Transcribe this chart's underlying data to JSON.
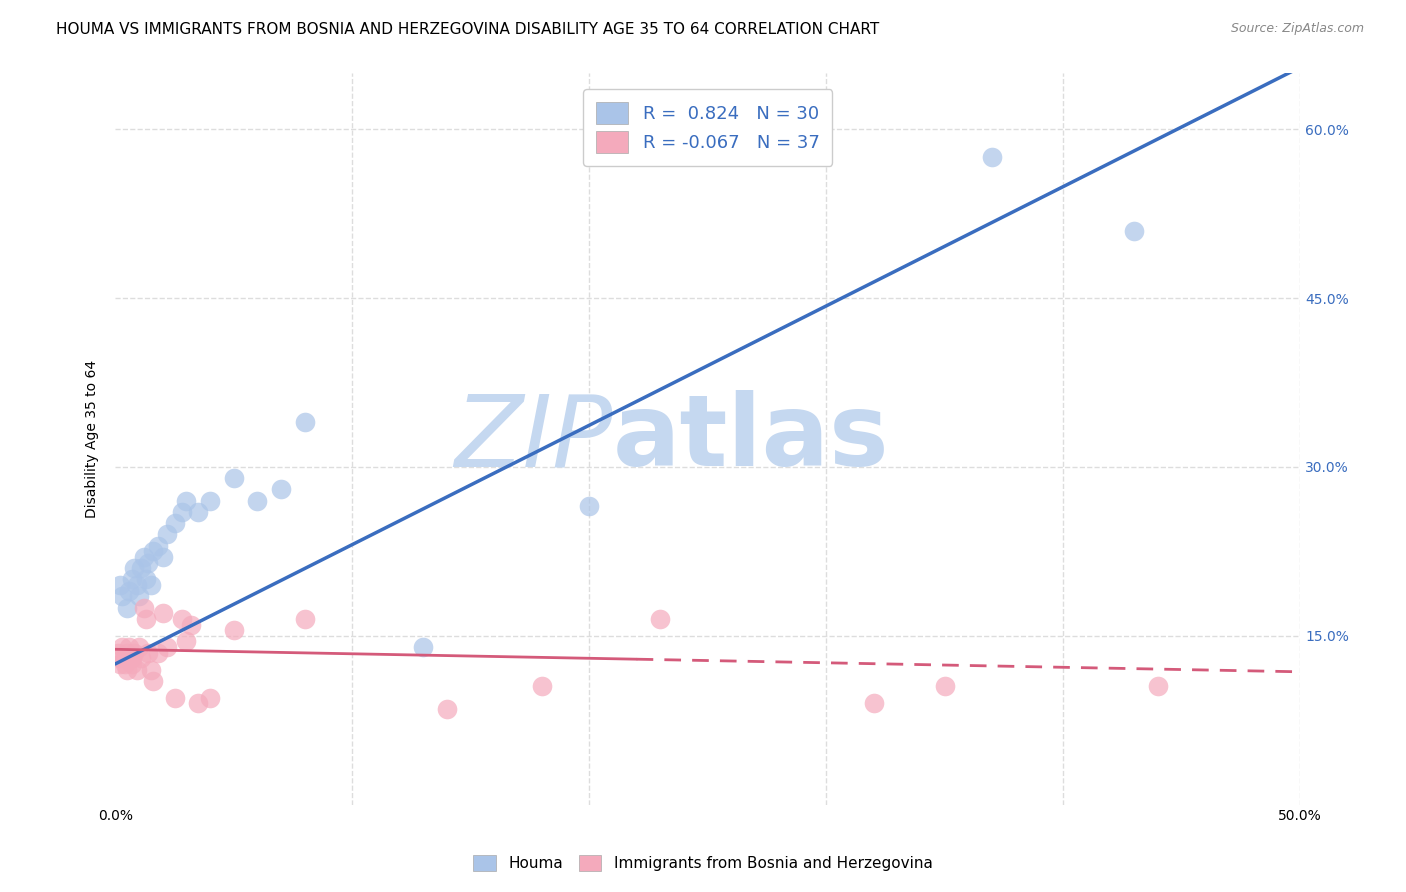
{
  "title": "HOUMA VS IMMIGRANTS FROM BOSNIA AND HERZEGOVINA DISABILITY AGE 35 TO 64 CORRELATION CHART",
  "source": "Source: ZipAtlas.com",
  "ylabel": "Disability Age 35 to 64",
  "x_min": 0.0,
  "x_max": 0.5,
  "y_min": 0.0,
  "y_max": 0.65,
  "x_ticks": [
    0.0,
    0.1,
    0.2,
    0.3,
    0.4,
    0.5
  ],
  "x_tick_labels": [
    "0.0%",
    "",
    "",
    "",
    "",
    "50.0%"
  ],
  "y_ticks": [
    0.15,
    0.3,
    0.45,
    0.6
  ],
  "y_tick_labels": [
    "15.0%",
    "30.0%",
    "45.0%",
    "60.0%"
  ],
  "houma_R": 0.824,
  "houma_N": 30,
  "bosnia_R": -0.067,
  "bosnia_N": 37,
  "houma_color": "#aac4e8",
  "houma_line_color": "#3a6dbf",
  "bosnia_color": "#f4aabc",
  "bosnia_line_color": "#d45a7a",
  "watermark_ZIP": "#c5d8f0",
  "watermark_atlas": "#c5d8f0",
  "legend_box_color": "#ffffff",
  "legend_border_color": "#cccccc",
  "grid_color": "#dddddd",
  "background_color": "#ffffff",
  "title_fontsize": 11,
  "axis_label_fontsize": 10,
  "tick_fontsize": 10,
  "houma_x": [
    0.002,
    0.003,
    0.005,
    0.006,
    0.007,
    0.008,
    0.009,
    0.01,
    0.011,
    0.012,
    0.013,
    0.014,
    0.015,
    0.016,
    0.018,
    0.02,
    0.022,
    0.025,
    0.028,
    0.03,
    0.035,
    0.04,
    0.05,
    0.06,
    0.07,
    0.08,
    0.13,
    0.2,
    0.37,
    0.43
  ],
  "houma_y": [
    0.195,
    0.185,
    0.175,
    0.19,
    0.2,
    0.21,
    0.195,
    0.185,
    0.21,
    0.22,
    0.2,
    0.215,
    0.195,
    0.225,
    0.23,
    0.22,
    0.24,
    0.25,
    0.26,
    0.27,
    0.26,
    0.27,
    0.29,
    0.27,
    0.28,
    0.34,
    0.14,
    0.265,
    0.575,
    0.51
  ],
  "bosnia_x": [
    0.001,
    0.002,
    0.002,
    0.003,
    0.004,
    0.004,
    0.005,
    0.005,
    0.006,
    0.007,
    0.007,
    0.008,
    0.009,
    0.01,
    0.011,
    0.012,
    0.013,
    0.014,
    0.015,
    0.016,
    0.018,
    0.02,
    0.022,
    0.025,
    0.028,
    0.03,
    0.032,
    0.035,
    0.04,
    0.05,
    0.08,
    0.14,
    0.18,
    0.23,
    0.32,
    0.35,
    0.44
  ],
  "bosnia_y": [
    0.135,
    0.13,
    0.125,
    0.14,
    0.13,
    0.125,
    0.135,
    0.12,
    0.14,
    0.13,
    0.125,
    0.135,
    0.12,
    0.14,
    0.13,
    0.175,
    0.165,
    0.135,
    0.12,
    0.11,
    0.135,
    0.17,
    0.14,
    0.095,
    0.165,
    0.145,
    0.16,
    0.09,
    0.095,
    0.155,
    0.165,
    0.085,
    0.105,
    0.165,
    0.09,
    0.105,
    0.105
  ],
  "houma_trendline_x0": 0.0,
  "houma_trendline_y0": 0.125,
  "houma_trendline_x1": 0.5,
  "houma_trendline_y1": 0.655,
  "bosnia_trendline_x0": 0.0,
  "bosnia_trendline_y0": 0.138,
  "bosnia_trendline_x1": 0.5,
  "bosnia_trendline_y1": 0.118
}
